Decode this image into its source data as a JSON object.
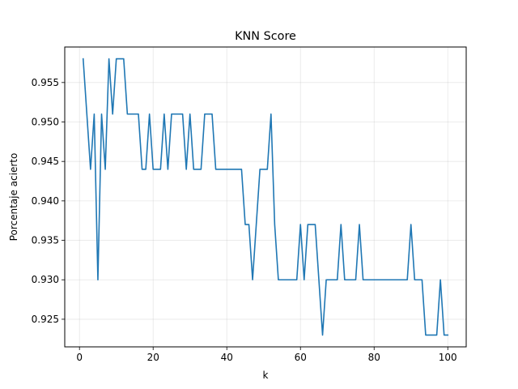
{
  "chart_data": {
    "type": "line",
    "title": "KNN Score",
    "xlabel": "k",
    "ylabel": "Porcentaje acierto",
    "xlim": [
      -4,
      105
    ],
    "ylim": [
      0.9215,
      0.9595
    ],
    "xticks": [
      0,
      20,
      40,
      60,
      80,
      100
    ],
    "yticks": [
      0.925,
      0.93,
      0.935,
      0.94,
      0.945,
      0.95,
      0.955
    ],
    "ytick_labels": [
      "0.925",
      "0.930",
      "0.935",
      "0.940",
      "0.945",
      "0.950",
      "0.955"
    ],
    "grid": true,
    "line_color": "#1f77b4",
    "x": [
      1,
      2,
      3,
      4,
      5,
      6,
      7,
      8,
      9,
      10,
      11,
      12,
      13,
      14,
      15,
      16,
      17,
      18,
      19,
      20,
      21,
      22,
      23,
      24,
      25,
      26,
      27,
      28,
      29,
      30,
      31,
      32,
      33,
      34,
      35,
      36,
      37,
      38,
      39,
      40,
      41,
      42,
      43,
      44,
      45,
      46,
      47,
      48,
      49,
      50,
      51,
      52,
      53,
      54,
      55,
      56,
      57,
      58,
      59,
      60,
      61,
      62,
      63,
      64,
      65,
      66,
      67,
      68,
      69,
      70,
      71,
      72,
      73,
      74,
      75,
      76,
      77,
      78,
      79,
      80,
      81,
      82,
      83,
      84,
      85,
      86,
      87,
      88,
      89,
      90,
      91,
      92,
      93,
      94,
      95,
      96,
      97,
      98,
      99,
      100
    ],
    "y": [
      0.958,
      0.951,
      0.944,
      0.951,
      0.93,
      0.951,
      0.944,
      0.958,
      0.951,
      0.958,
      0.958,
      0.958,
      0.951,
      0.951,
      0.951,
      0.951,
      0.944,
      0.944,
      0.951,
      0.944,
      0.944,
      0.944,
      0.951,
      0.944,
      0.951,
      0.951,
      0.951,
      0.951,
      0.944,
      0.951,
      0.944,
      0.944,
      0.944,
      0.951,
      0.951,
      0.951,
      0.944,
      0.944,
      0.944,
      0.944,
      0.944,
      0.944,
      0.944,
      0.944,
      0.937,
      0.937,
      0.93,
      0.937,
      0.944,
      0.944,
      0.944,
      0.951,
      0.937,
      0.93,
      0.93,
      0.93,
      0.93,
      0.93,
      0.93,
      0.937,
      0.93,
      0.937,
      0.937,
      0.937,
      0.93,
      0.923,
      0.93,
      0.93,
      0.93,
      0.93,
      0.937,
      0.93,
      0.93,
      0.93,
      0.93,
      0.937,
      0.93,
      0.93,
      0.93,
      0.93,
      0.93,
      0.93,
      0.93,
      0.93,
      0.93,
      0.93,
      0.93,
      0.93,
      0.93,
      0.937,
      0.93,
      0.93,
      0.93,
      0.923,
      0.923,
      0.923,
      0.923,
      0.93,
      0.923,
      0.923
    ]
  }
}
